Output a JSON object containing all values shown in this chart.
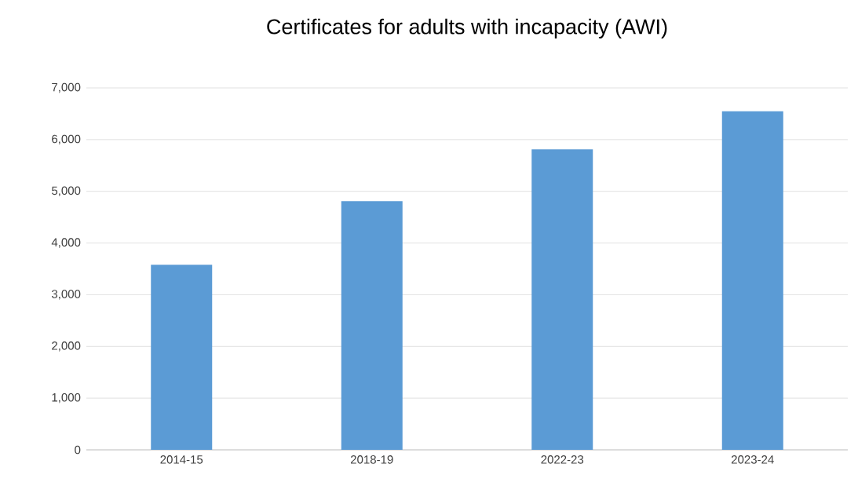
{
  "chart_data": {
    "type": "bar",
    "title": "Certificates for adults with incapacity (AWI)",
    "categories": [
      "2014-15",
      "2018-19",
      "2022-23",
      "2023-24"
    ],
    "values": [
      3580,
      4810,
      5810,
      6550
    ],
    "color": "#5b9bd5",
    "ylim": [
      0,
      7000
    ],
    "yticks": [
      {
        "value": 0,
        "label": "0"
      },
      {
        "value": 1000,
        "label": "1,000"
      },
      {
        "value": 2000,
        "label": "2,000"
      },
      {
        "value": 3000,
        "label": "3,000"
      },
      {
        "value": 4000,
        "label": "4,000"
      },
      {
        "value": 5000,
        "label": "5,000"
      },
      {
        "value": 6000,
        "label": "6,000"
      },
      {
        "value": 7000,
        "label": "7,000"
      }
    ],
    "grid": "y"
  }
}
